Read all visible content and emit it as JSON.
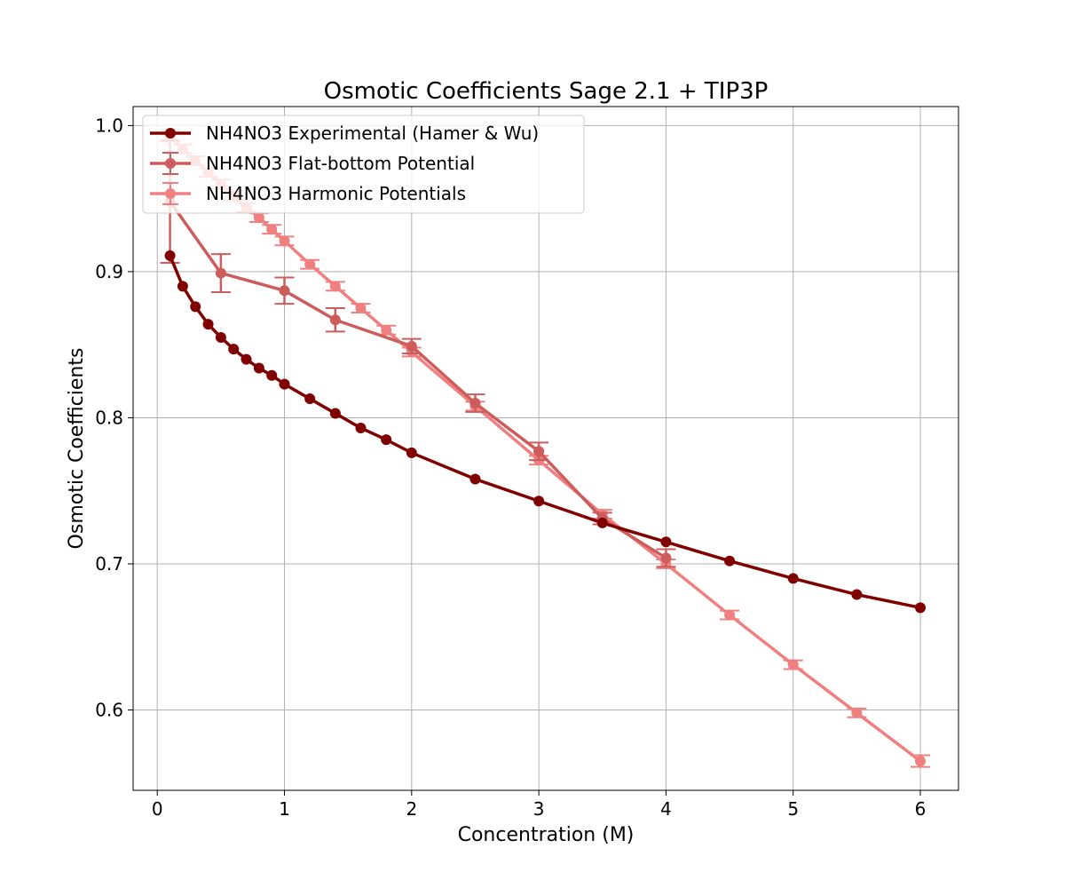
{
  "chart_data": {
    "type": "line",
    "title": "Osmotic Coefficients Sage 2.1 + TIP3P",
    "xlabel": "Concentration (M)",
    "ylabel": "Osmotic Coefficients",
    "xlim": [
      -0.19,
      6.3
    ],
    "ylim": [
      0.545,
      1.013
    ],
    "x_ticks": [
      0,
      1,
      2,
      3,
      4,
      5,
      6
    ],
    "y_ticks": [
      0.6,
      0.7,
      0.8,
      0.9,
      1.0
    ],
    "x_tick_labels": [
      "0",
      "1",
      "2",
      "3",
      "4",
      "5",
      "6"
    ],
    "y_tick_labels": [
      "0.6",
      "0.7",
      "0.8",
      "0.9",
      "1.0"
    ],
    "grid": true,
    "legend_position": "top-left",
    "series": [
      {
        "name": "NH4NO3 Experimental (Hamer & Wu)",
        "color": "#800000",
        "x": [
          0.1,
          0.2,
          0.3,
          0.4,
          0.5,
          0.6,
          0.7,
          0.8,
          0.9,
          1.0,
          1.2,
          1.4,
          1.6,
          1.8,
          2.0,
          2.5,
          3.0,
          3.5,
          4.0,
          4.5,
          5.0,
          5.5,
          6.0
        ],
        "y": [
          0.911,
          0.89,
          0.876,
          0.864,
          0.855,
          0.847,
          0.84,
          0.834,
          0.829,
          0.823,
          0.813,
          0.803,
          0.793,
          0.785,
          0.776,
          0.758,
          0.743,
          0.728,
          0.715,
          0.702,
          0.69,
          0.679,
          0.67
        ],
        "err": null
      },
      {
        "name": "NH4NO3 Flat-bottom Potential",
        "color": "#cd5c5c",
        "x": [
          0.1,
          0.5,
          1.0,
          1.4,
          2.0,
          2.5,
          3.0,
          3.5,
          4.0
        ],
        "y": [
          0.948,
          0.899,
          0.887,
          0.867,
          0.849,
          0.81,
          0.777,
          0.731,
          0.704
        ],
        "err": [
          0.042,
          0.013,
          0.009,
          0.008,
          0.005,
          0.006,
          0.006,
          0.004,
          0.006
        ]
      },
      {
        "name": "NH4NO3 Harmonic Potentials",
        "color": "#f08080",
        "x": [
          0.1,
          0.2,
          0.3,
          0.4,
          0.5,
          0.6,
          0.7,
          0.8,
          0.9,
          1.0,
          1.2,
          1.4,
          1.6,
          1.8,
          2.0,
          2.5,
          3.0,
          3.5,
          4.0,
          4.5,
          5.0,
          5.5,
          6.0
        ],
        "y": [
          0.993,
          0.984,
          0.976,
          0.968,
          0.96,
          0.952,
          0.944,
          0.937,
          0.929,
          0.921,
          0.905,
          0.89,
          0.875,
          0.86,
          0.845,
          0.808,
          0.771,
          0.734,
          0.7,
          0.665,
          0.631,
          0.598,
          0.565
        ],
        "err": [
          0.004,
          0.003,
          0.003,
          0.003,
          0.003,
          0.003,
          0.003,
          0.003,
          0.003,
          0.003,
          0.003,
          0.003,
          0.003,
          0.003,
          0.003,
          0.003,
          0.003,
          0.003,
          0.003,
          0.003,
          0.003,
          0.003,
          0.004
        ]
      }
    ]
  }
}
